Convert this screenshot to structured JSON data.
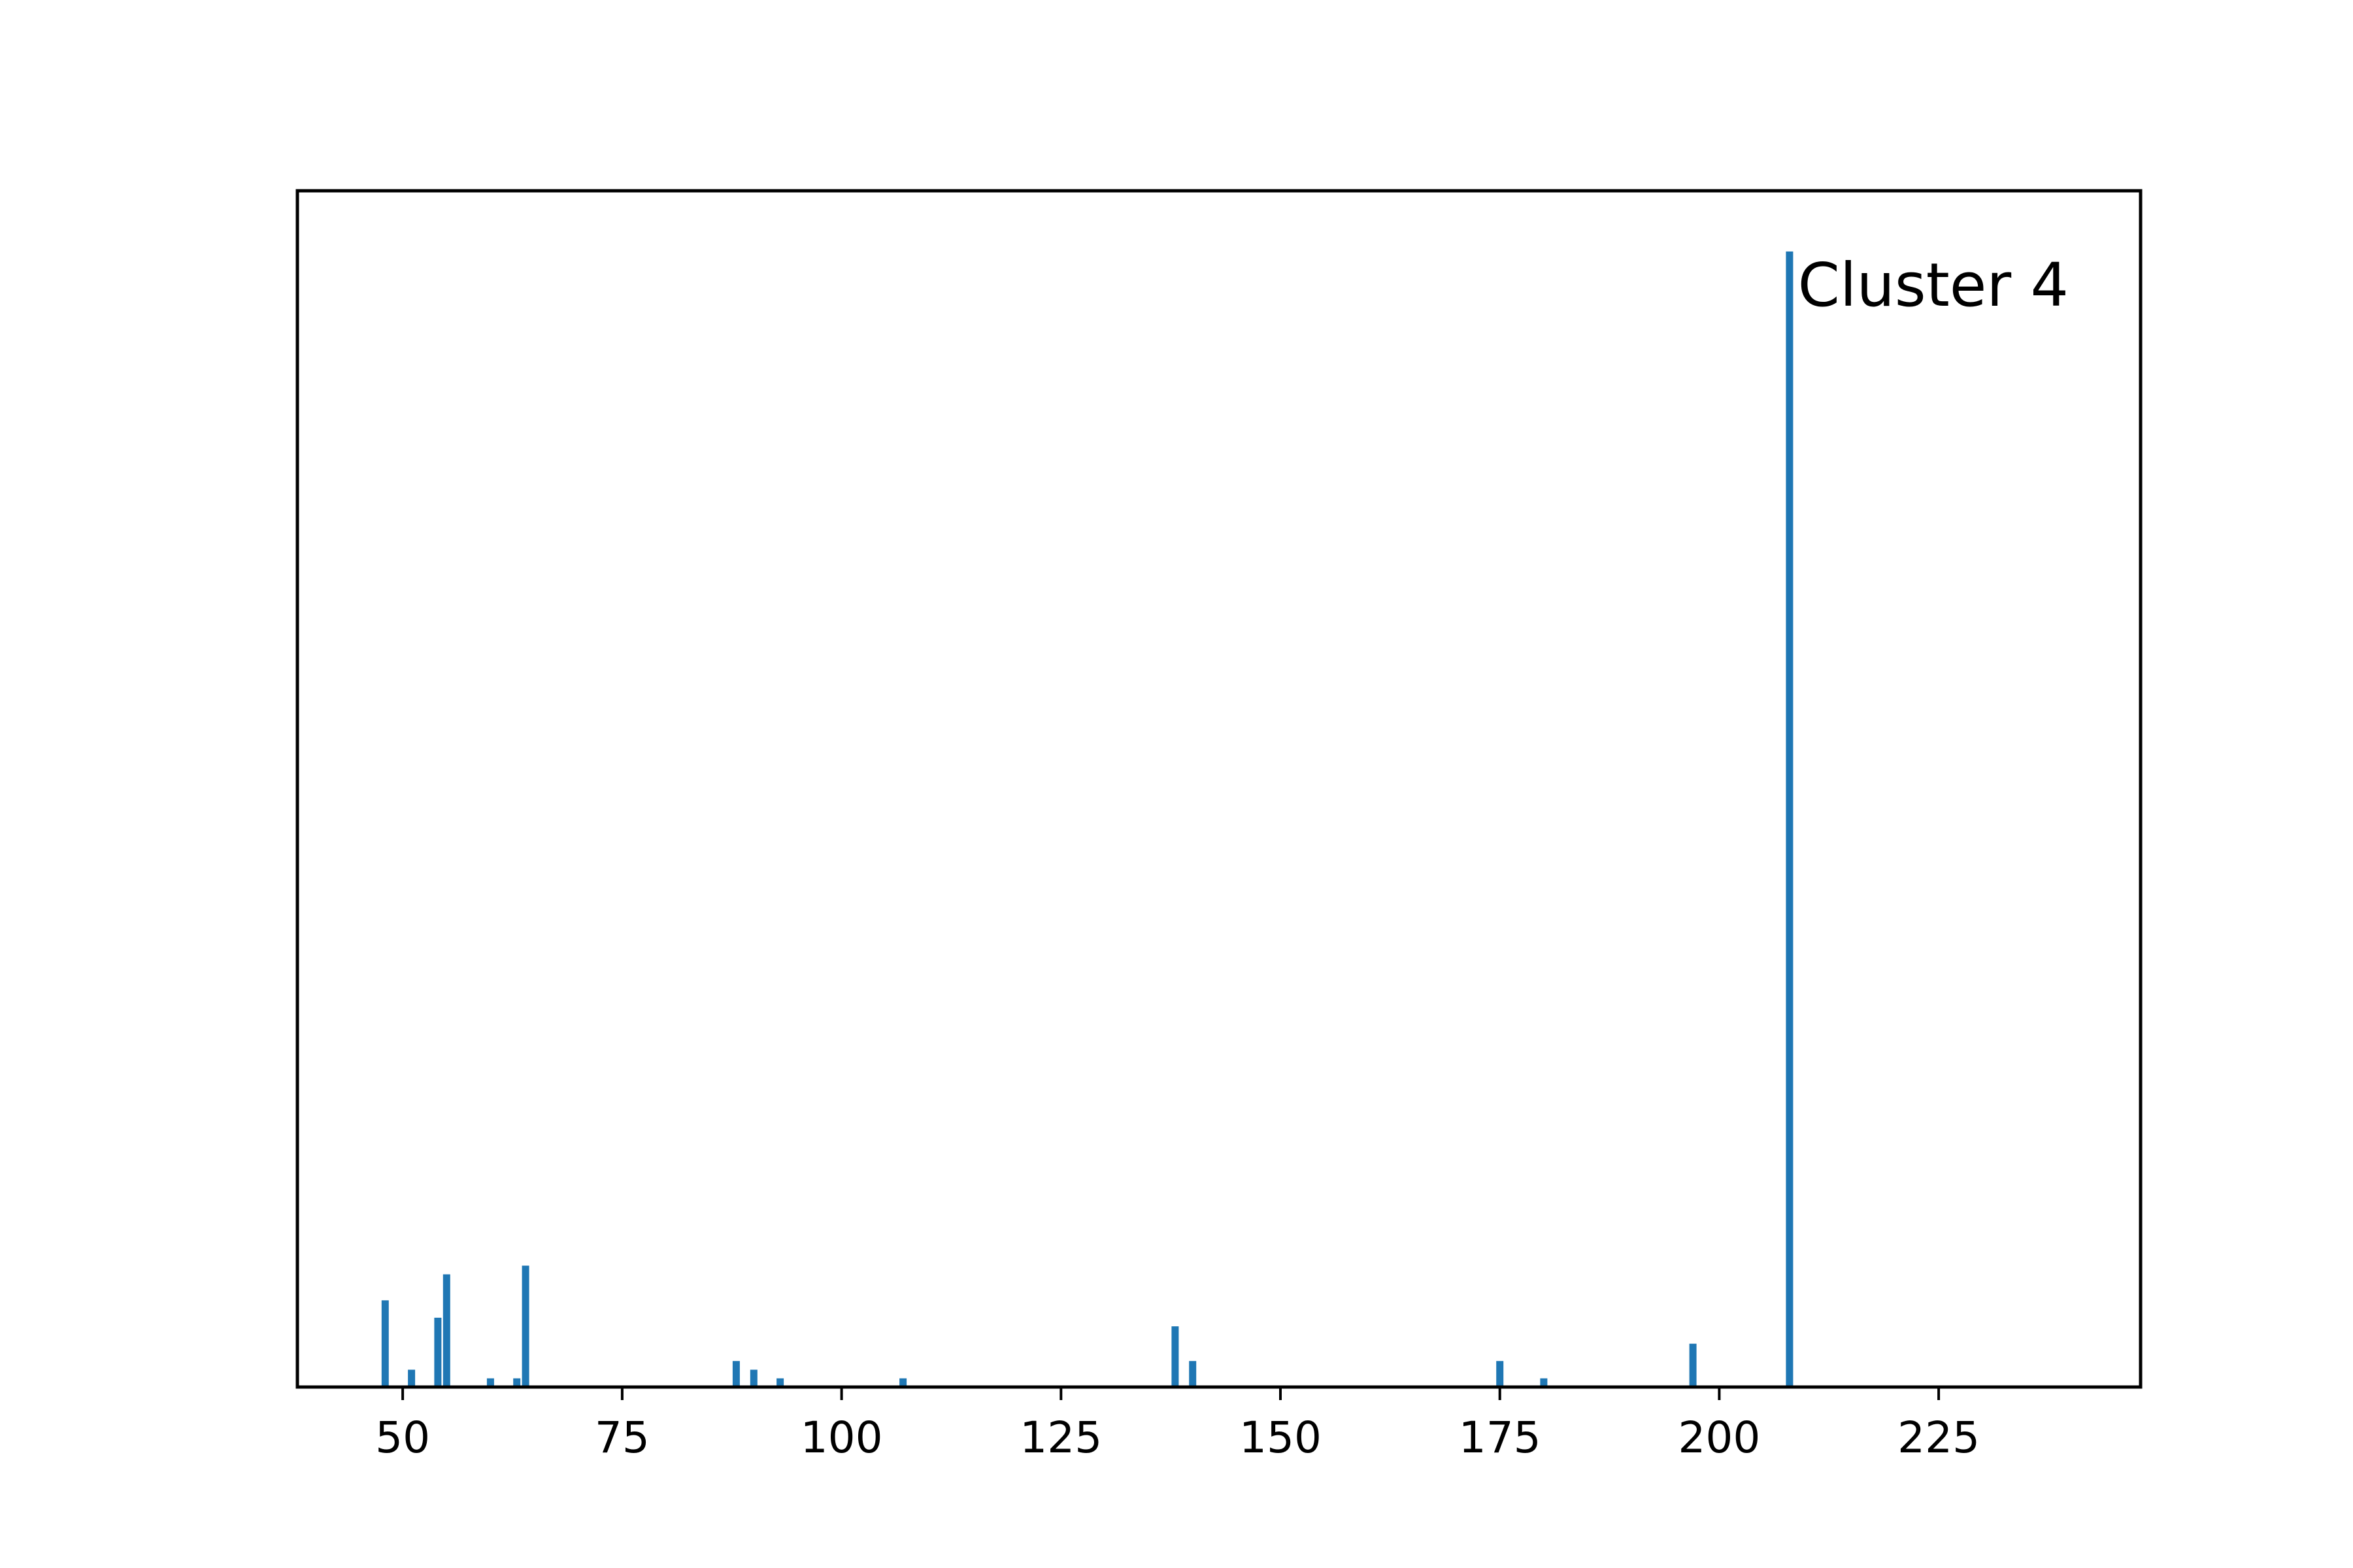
{
  "chart_data": {
    "type": "bar",
    "title": "",
    "xlabel": "",
    "ylabel": "",
    "xlim": [
      38,
      248
    ],
    "ylim": [
      0,
      138
    ],
    "x_ticks": [
      50,
      75,
      100,
      125,
      150,
      175,
      200,
      225
    ],
    "y_ticks": [],
    "grid": false,
    "annotation": "Cluster 4",
    "bar_color": "#1f77b4",
    "bars": [
      {
        "x": 48,
        "y": 10
      },
      {
        "x": 51,
        "y": 2
      },
      {
        "x": 54,
        "y": 8
      },
      {
        "x": 55,
        "y": 13
      },
      {
        "x": 60,
        "y": 1
      },
      {
        "x": 63,
        "y": 1
      },
      {
        "x": 64,
        "y": 14
      },
      {
        "x": 88,
        "y": 3
      },
      {
        "x": 90,
        "y": 2
      },
      {
        "x": 93,
        "y": 1
      },
      {
        "x": 107,
        "y": 1
      },
      {
        "x": 138,
        "y": 7
      },
      {
        "x": 140,
        "y": 3
      },
      {
        "x": 175,
        "y": 3
      },
      {
        "x": 180,
        "y": 1
      },
      {
        "x": 197,
        "y": 5
      },
      {
        "x": 208,
        "y": 131
      }
    ]
  }
}
